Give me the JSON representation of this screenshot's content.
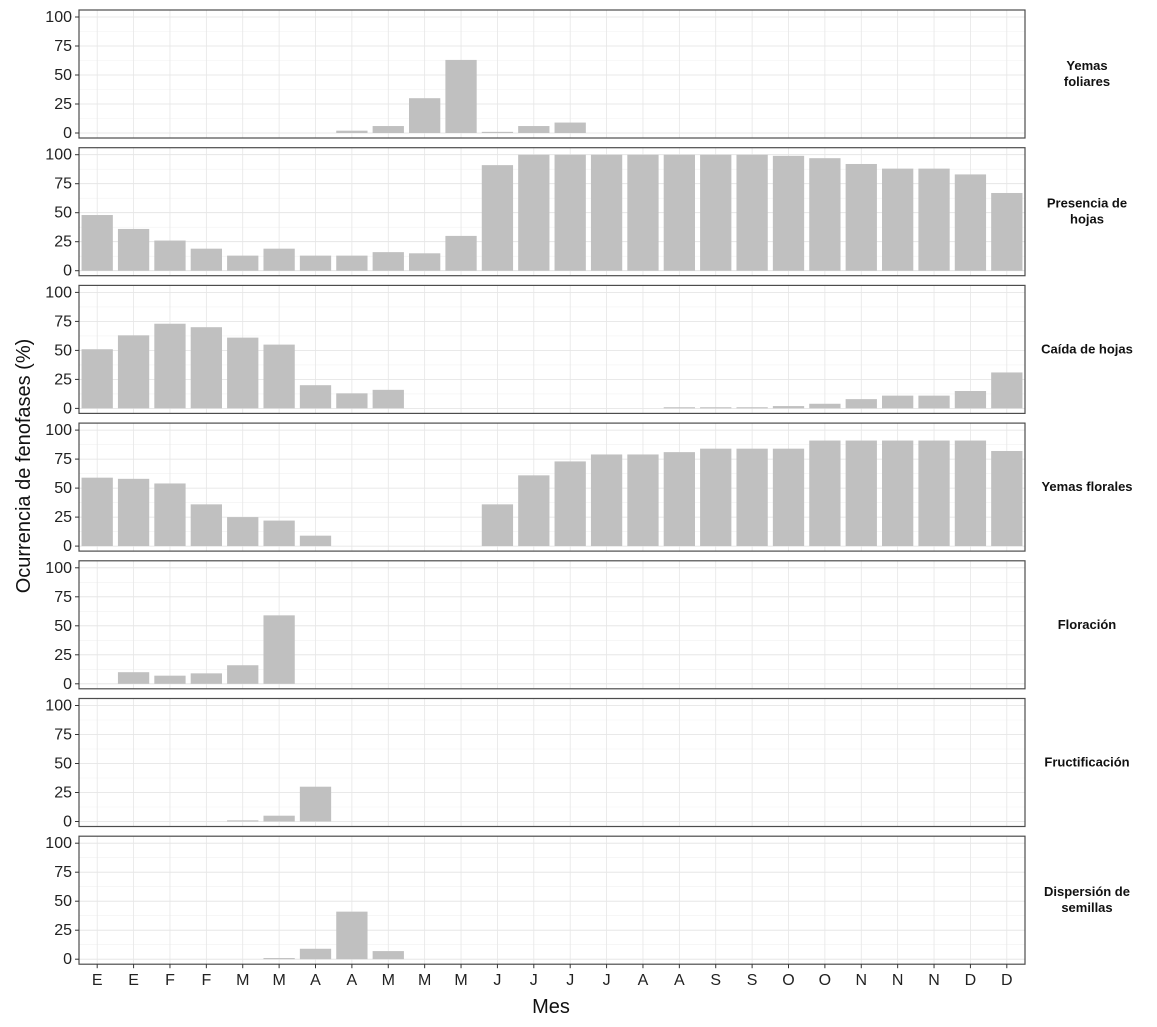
{
  "chart_data": {
    "type": "bar",
    "xlabel": "Mes",
    "ylabel": "Ocurrencia de fenofases (%)",
    "categories": [
      "E",
      "E",
      "F",
      "F",
      "M",
      "M",
      "A",
      "A",
      "M",
      "M",
      "M",
      "J",
      "J",
      "J",
      "J",
      "A",
      "A",
      "S",
      "S",
      "O",
      "O",
      "N",
      "N",
      "N",
      "D",
      "D"
    ],
    "ylim": [
      0,
      100
    ],
    "yticks": [
      0,
      25,
      50,
      75,
      100
    ],
    "grid": true,
    "bar_color": "#c0c0c0",
    "series": [
      {
        "name": "Yemas\nfoliares",
        "values": [
          0,
          0,
          0,
          0,
          0,
          0,
          0,
          2,
          6,
          30,
          63,
          1,
          6,
          9,
          0,
          0,
          0,
          0,
          0,
          0,
          0,
          0,
          0,
          0,
          0,
          0
        ]
      },
      {
        "name": "Presencia de\nhojas",
        "values": [
          48,
          36,
          26,
          19,
          13,
          19,
          13,
          13,
          16,
          15,
          30,
          91,
          100,
          100,
          100,
          100,
          100,
          100,
          100,
          99,
          97,
          92,
          88,
          88,
          83,
          67
        ]
      },
      {
        "name": "Caída de hojas",
        "values": [
          51,
          63,
          73,
          70,
          61,
          55,
          20,
          13,
          16,
          0,
          0,
          0,
          0,
          0,
          0,
          0,
          1,
          1,
          1,
          2,
          4,
          8,
          11,
          11,
          15,
          31
        ]
      },
      {
        "name": "Yemas florales",
        "values": [
          59,
          58,
          54,
          36,
          25,
          22,
          9,
          0,
          0,
          0,
          0,
          36,
          61,
          73,
          79,
          79,
          81,
          84,
          84,
          84,
          91,
          91,
          91,
          91,
          91,
          82
        ]
      },
      {
        "name": "Floración",
        "values": [
          0,
          10,
          7,
          9,
          16,
          59,
          0,
          0,
          0,
          0,
          0,
          0,
          0,
          0,
          0,
          0,
          0,
          0,
          0,
          0,
          0,
          0,
          0,
          0,
          0,
          0
        ]
      },
      {
        "name": "Fructificación",
        "values": [
          0,
          0,
          0,
          0,
          1,
          5,
          30,
          0,
          0,
          0,
          0,
          0,
          0,
          0,
          0,
          0,
          0,
          0,
          0,
          0,
          0,
          0,
          0,
          0,
          0,
          0
        ]
      },
      {
        "name": "Dispersión de\nsemillas",
        "values": [
          0,
          0,
          0,
          0,
          0,
          1,
          9,
          41,
          7,
          0,
          0,
          0,
          0,
          0,
          0,
          0,
          0,
          0,
          0,
          0,
          0,
          0,
          0,
          0,
          0,
          0
        ]
      }
    ]
  }
}
